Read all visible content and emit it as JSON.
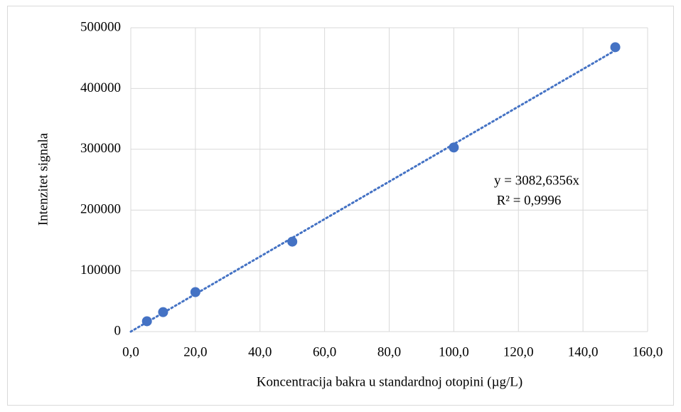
{
  "chart_data": {
    "type": "scatter",
    "xlabel": "Koncentracija bakra u standardnoj otopini (µg/L)",
    "ylabel": "Intenzitet signala",
    "series": [
      {
        "color": "#4472c4",
        "x": [
          5,
          10,
          20,
          50,
          100,
          150
        ],
        "values": [
          17000,
          32000,
          65000,
          148000,
          303000,
          468000
        ]
      }
    ],
    "trendline": {
      "equation": "y = 3082,6356x",
      "r_squared": "R² = 0,9996",
      "color": "#4472c4"
    },
    "xlim": [
      0,
      160
    ],
    "xticks": [
      {
        "value": 0,
        "label": "0,0"
      },
      {
        "value": 20,
        "label": "20,0"
      },
      {
        "value": 40,
        "label": "40,0"
      },
      {
        "value": 60,
        "label": "60,0"
      },
      {
        "value": 80,
        "label": "80,0"
      },
      {
        "value": 100,
        "label": "100,0"
      },
      {
        "value": 120,
        "label": "120,0"
      },
      {
        "value": 140,
        "label": "140,0"
      },
      {
        "value": 160,
        "label": "160,0"
      }
    ],
    "ylim": [
      0,
      500000
    ],
    "yticks": [
      0,
      100000,
      200000,
      300000,
      400000,
      500000
    ],
    "grid": true
  }
}
